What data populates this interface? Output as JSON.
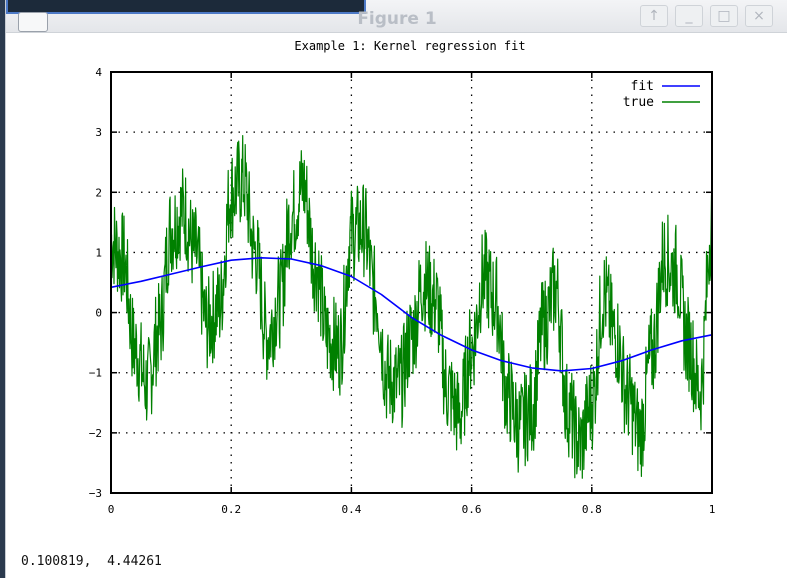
{
  "window": {
    "title": "Figure 1",
    "buttons": {
      "maximize_up": "↑",
      "minimize": "_",
      "restore": "□",
      "close": "×"
    }
  },
  "chart_data": {
    "type": "line",
    "title": "Example 1: Kernel regression fit",
    "xlim": [
      0,
      1
    ],
    "ylim": [
      -3,
      4
    ],
    "x_ticks": [
      "0",
      "0.2",
      "0.4",
      "0.6",
      "0.8",
      "1"
    ],
    "y_ticks": [
      "4",
      "3",
      "2",
      "1",
      "0",
      "−1",
      "−2",
      "−3"
    ],
    "grid": true,
    "legend_position": "top-right",
    "series": [
      {
        "name": "fit",
        "color": "#0000ff",
        "x": [
          0,
          0.05,
          0.1,
          0.15,
          0.2,
          0.25,
          0.3,
          0.35,
          0.4,
          0.45,
          0.5,
          0.55,
          0.6,
          0.65,
          0.7,
          0.75,
          0.8,
          0.85,
          0.9,
          0.95,
          1.0
        ],
        "y": [
          0.42,
          0.52,
          0.64,
          0.76,
          0.87,
          0.91,
          0.89,
          0.78,
          0.6,
          0.3,
          -0.08,
          -0.38,
          -0.62,
          -0.8,
          -0.92,
          -0.97,
          -0.93,
          -0.8,
          -0.62,
          -0.47,
          -0.37
        ]
      },
      {
        "name": "true",
        "color": "#008000",
        "description_points": "noisy sinusoid, roughly sin(2πx) + 1.1·sin(14πx) plus noise",
        "x": [
          0,
          0.02,
          0.04,
          0.06,
          0.08,
          0.1,
          0.12,
          0.14,
          0.16,
          0.18,
          0.2,
          0.22,
          0.24,
          0.26,
          0.28,
          0.3,
          0.32,
          0.34,
          0.36,
          0.38,
          0.4,
          0.42,
          0.44,
          0.46,
          0.48,
          0.5,
          0.52,
          0.54,
          0.56,
          0.58,
          0.6,
          0.62,
          0.64,
          0.66,
          0.68,
          0.7,
          0.72,
          0.74,
          0.76,
          0.78,
          0.8,
          0.82,
          0.84,
          0.86,
          0.88,
          0.9,
          0.92,
          0.94,
          0.96,
          0.98,
          1.0
        ],
        "y": [
          1.2,
          0.9,
          -0.6,
          -1.2,
          -0.3,
          1.4,
          1.7,
          1.0,
          -0.2,
          0.1,
          2.0,
          2.2,
          1.0,
          -0.4,
          0.2,
          1.6,
          2.1,
          0.8,
          -0.4,
          -0.6,
          1.3,
          1.4,
          0.3,
          -1.1,
          -1.2,
          -0.4,
          0.5,
          0.2,
          -1.3,
          -1.7,
          -0.6,
          0.6,
          0.2,
          -1.4,
          -1.9,
          -1.6,
          -0.2,
          0.4,
          -1.6,
          -2.2,
          -1.5,
          0.3,
          -0.4,
          -1.4,
          -2.0,
          -0.7,
          0.9,
          0.7,
          -0.5,
          -1.3,
          1.5
        ]
      }
    ]
  },
  "status_bar": {
    "coords": "0.100819,  4.44261"
  }
}
